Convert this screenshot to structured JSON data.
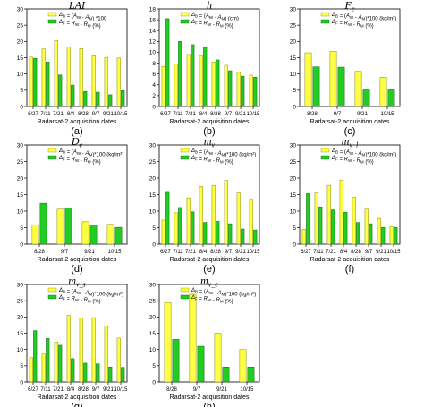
{
  "colors": {
    "yellow": "#ffff44",
    "yellow_stroke": "#8a8a00",
    "green": "#22cc22",
    "green_stroke": "#116611",
    "axis": "#000000"
  },
  "chart_data": [
    {
      "type": "bar",
      "panel": "(a)",
      "title": "LAI",
      "title_italic": false,
      "xlabel": "Radarsat-2 acquisition dates",
      "ylim": [
        0,
        30
      ],
      "yticks": [
        0,
        5,
        10,
        15,
        20,
        25,
        30
      ],
      "categories": [
        "6/27",
        "7/11",
        "7/21",
        "8/4",
        "8/28",
        "9/7",
        "9/21",
        "10/15"
      ],
      "legend": [
        "Δ_B = (A_W - A_M) *100",
        "Δ_F = R_W - R_M (%)"
      ],
      "series": [
        {
          "name": "Δ_B = (A_W - A_M) *100",
          "values": [
            15.2,
            17.7,
            20.3,
            18.3,
            17.8,
            15.6,
            15.1,
            14.9
          ]
        },
        {
          "name": "Δ_F = R_W - R_M (%)",
          "values": [
            14.8,
            13.7,
            9.7,
            6.6,
            4.6,
            4.4,
            3.6,
            4.9
          ]
        }
      ]
    },
    {
      "type": "bar",
      "panel": "(b)",
      "title": "h",
      "title_italic": true,
      "xlabel": "Radarsat-2 acquisition dates",
      "ylim": [
        0,
        18
      ],
      "yticks": [
        0,
        2,
        4,
        6,
        8,
        10,
        12,
        14,
        16,
        18
      ],
      "categories": [
        "6/27",
        "7/11",
        "7/21",
        "8/4",
        "8/28",
        "9/7",
        "9/21",
        "10/15"
      ],
      "legend": [
        "Δ_B = (A_W - A_M) (cm)",
        "Δ_F = R_W - R_M (%)"
      ],
      "series": [
        {
          "name": "Δ_B = (A_W - A_M) (cm)",
          "values": [
            7.4,
            7.8,
            9.6,
            9.4,
            8.2,
            7.6,
            6.3,
            5.8
          ]
        },
        {
          "name": "Δ_F = R_W - R_M (%)",
          "values": [
            16.2,
            12.0,
            11.4,
            10.9,
            8.6,
            6.6,
            5.6,
            5.4
          ]
        }
      ]
    },
    {
      "type": "bar",
      "panel": "(c)",
      "title": "F_e",
      "title_italic": true,
      "xlabel": "Radarsat-2 acquisition dates",
      "ylim": [
        0,
        30
      ],
      "yticks": [
        0,
        5,
        10,
        15,
        20,
        25,
        30
      ],
      "categories": [
        "8/28",
        "9/7",
        "9/21",
        "10/15"
      ],
      "legend": [
        "Δ_B = (A_W - A_M)*100 (kg/m²)",
        "Δ_F = R_W - R_M (%)"
      ],
      "series": [
        {
          "name": "Δ_B = (A_W - A_M)*100 (kg/m²)",
          "values": [
            16.5,
            17.0,
            10.8,
            9.0
          ]
        },
        {
          "name": "Δ_F = R_W - R_M (%)",
          "values": [
            12.2,
            12.1,
            5.1,
            5.1
          ]
        }
      ]
    },
    {
      "type": "bar",
      "panel": "(d)",
      "title": "D_e",
      "title_italic": true,
      "xlabel": "Radarsat-2 acquisition dates",
      "ylim": [
        0,
        30
      ],
      "yticks": [
        0,
        5,
        10,
        15,
        20,
        25,
        30
      ],
      "categories": [
        "8/28",
        "9/7",
        "9/21",
        "10/15"
      ],
      "legend": [
        "Δ_B = (A_W - A_M)*100 (kg/m²)",
        "Δ_F = R_W - R_M (%)"
      ],
      "series": [
        {
          "name": "Δ_B = (A_W - A_M)*100 (kg/m²)",
          "values": [
            5.9,
            10.6,
            6.8,
            6.0
          ]
        },
        {
          "name": "Δ_F = R_W - R_M (%)",
          "values": [
            12.4,
            11.0,
            5.8,
            5.1
          ]
        }
      ]
    },
    {
      "type": "bar",
      "panel": "(e)",
      "title": "m_v",
      "title_italic": true,
      "xlabel": "Radarsat-2 acquisition dates",
      "ylim": [
        0,
        30
      ],
      "yticks": [
        0,
        5,
        10,
        15,
        20,
        25,
        30
      ],
      "categories": [
        "6/27",
        "7/11",
        "7/21",
        "8/4",
        "8/28",
        "9/7",
        "9/21",
        "10/15"
      ],
      "legend": [
        "Δ_B = (A_W - A_M)*100 (kg/m²)",
        "Δ_F = R_W - R_M (%)"
      ],
      "series": [
        {
          "name": "Δ_B = (A_W - A_M)*100 (kg/m²)",
          "values": [
            7.3,
            9.5,
            14.0,
            17.5,
            17.8,
            19.3,
            15.5,
            13.5
          ]
        },
        {
          "name": "Δ_F = R_W - R_M (%)",
          "values": [
            15.7,
            11.1,
            9.8,
            6.6,
            6.9,
            6.2,
            4.6,
            4.3
          ]
        }
      ]
    },
    {
      "type": "bar",
      "panel": "(f)",
      "title": "m_v_l",
      "title_italic": true,
      "xlabel": "Radarsat-2 acquisition dates",
      "ylim": [
        0,
        30
      ],
      "yticks": [
        0,
        5,
        10,
        15,
        20,
        25,
        30
      ],
      "categories": [
        "6/27",
        "7/11",
        "7/21",
        "8/4",
        "8/28",
        "9/7",
        "9/21",
        "10/15"
      ],
      "legend": [
        "Δ_B = (A_W - A_M)*100 (kg/m²)",
        "Δ_F = R_W - R_M (%)"
      ],
      "series": [
        {
          "name": "Δ_B = (A_W - A_M)*100 (kg/m²)",
          "values": [
            4.5,
            15.5,
            17.8,
            19.4,
            14.2,
            10.6,
            7.8,
            5.3
          ]
        },
        {
          "name": "Δ_F = R_W - R_M (%)",
          "values": [
            15.3,
            11.3,
            10.4,
            9.7,
            6.6,
            6.2,
            5.1,
            5.1
          ]
        }
      ]
    },
    {
      "type": "bar",
      "panel": "(g)",
      "title": "m_v_s",
      "title_italic": true,
      "xlabel": "Radarsat-2 acquisition dates",
      "ylim": [
        0,
        30
      ],
      "yticks": [
        0,
        5,
        10,
        15,
        20,
        25,
        30
      ],
      "categories": [
        "6/27",
        "7/11",
        "7/21",
        "8/4",
        "8/28",
        "9/7",
        "9/21",
        "10/15"
      ],
      "legend": [
        "Δ_B = (A_W - A_M)*100 (kg/m²)",
        "Δ_F = R_W - R_M (%)"
      ],
      "series": [
        {
          "name": "Δ_B = (A_W - A_M)*100 (kg/m²)",
          "values": [
            7.5,
            8.6,
            12.3,
            20.5,
            19.6,
            19.8,
            17.2,
            13.5
          ]
        },
        {
          "name": "Δ_F = R_W - R_M (%)",
          "values": [
            15.8,
            13.4,
            11.3,
            7.2,
            5.8,
            5.6,
            4.6,
            4.5
          ]
        }
      ]
    },
    {
      "type": "bar",
      "panel": "(h)",
      "title": "m_v_e",
      "title_italic": true,
      "xlabel": "Radarsat-2 acquisition dates",
      "ylim": [
        0,
        30
      ],
      "yticks": [
        0,
        5,
        10,
        15,
        20,
        25,
        30
      ],
      "categories": [
        "8/28",
        "9/7",
        "9/21",
        "10/15"
      ],
      "legend": [
        "Δ_B = (A_W - A_M)*100 (kg/m²)",
        "Δ_F = R_W - R_M (%)"
      ],
      "series": [
        {
          "name": "Δ_B = (A_W - A_M)*100 (kg/m²)",
          "values": [
            24.4,
            27.0,
            15.0,
            10.0
          ]
        },
        {
          "name": "Δ_F = R_W - R_M (%)",
          "values": [
            13.1,
            11.0,
            4.6,
            4.6
          ]
        }
      ]
    }
  ]
}
